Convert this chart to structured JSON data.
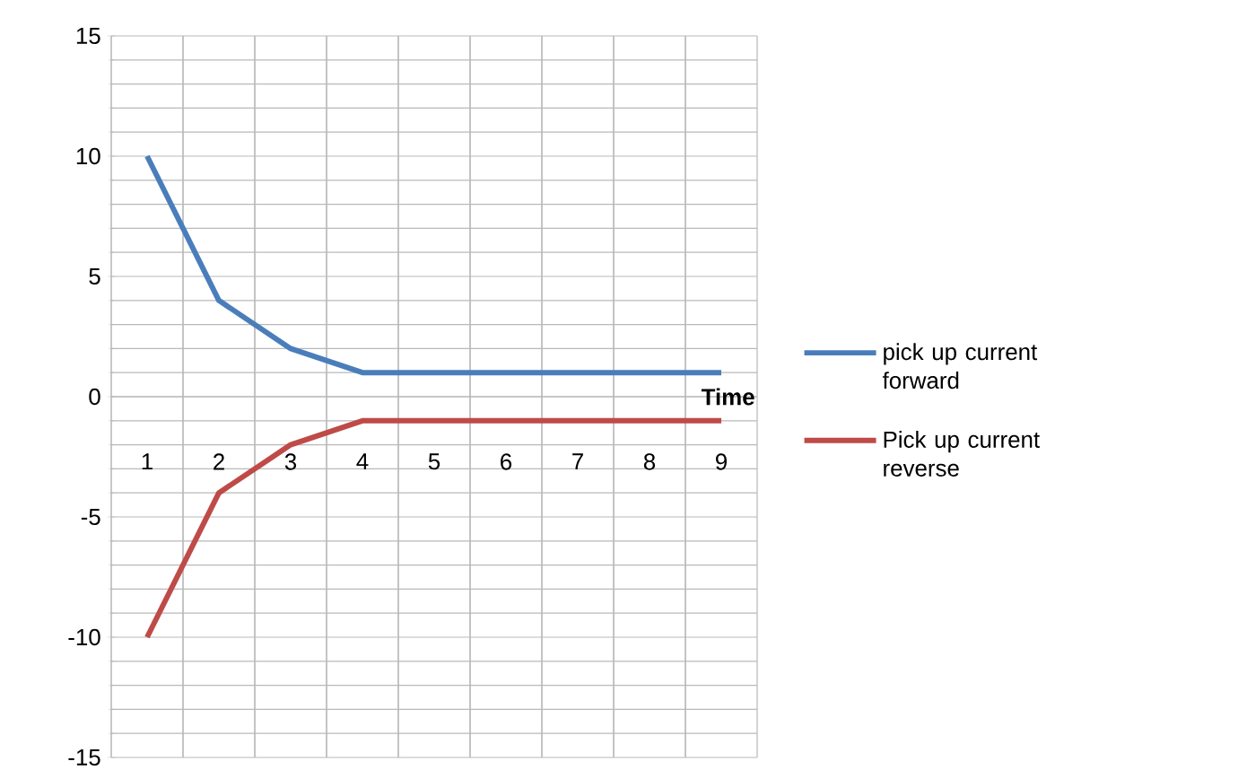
{
  "chart_data": {
    "type": "line",
    "xlabel": "Time",
    "categories": [
      "1",
      "2",
      "3",
      "4",
      "5",
      "6",
      "7",
      "8",
      "9"
    ],
    "series": [
      {
        "name": "pick up current forward",
        "color": "#4a7ebb",
        "values": [
          10,
          4,
          2,
          1,
          1,
          1,
          1,
          1,
          1
        ]
      },
      {
        "name": "Pick up current reverse",
        "color": "#be4b48",
        "values": [
          -10,
          -4,
          -2,
          -1,
          -1,
          -1,
          -1,
          -1,
          -1
        ]
      }
    ],
    "ylim": [
      -15,
      15
    ],
    "yticks": [
      -15,
      -10,
      -5,
      0,
      5,
      10,
      15
    ],
    "grid": true,
    "legend": "right",
    "marker": "none",
    "line_style": "solid"
  }
}
